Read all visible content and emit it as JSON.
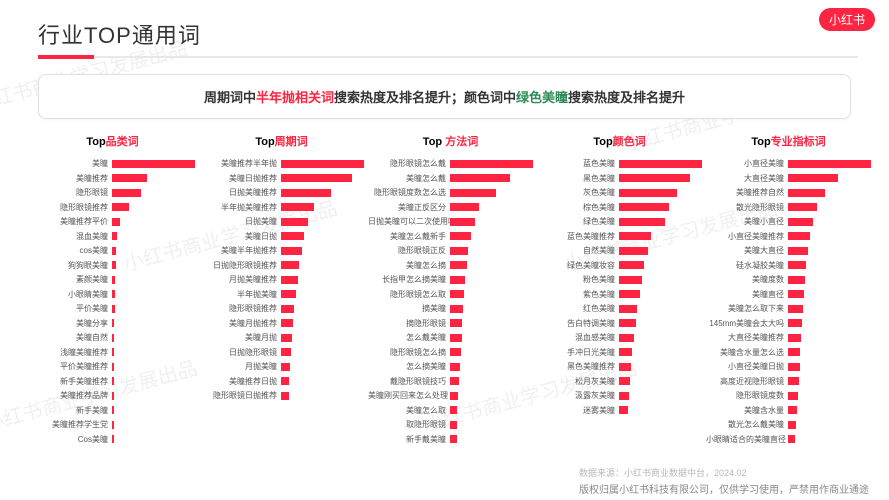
{
  "logo_text": "小红书",
  "page_title": "行业TOP通用词",
  "callout": {
    "p1": "周期词中",
    "hl1": "半年抛相关词",
    "p2": "搜索热度及排名提升；颜色词中",
    "hl2": "绿色美瞳",
    "p3": "搜索热度及排名提升"
  },
  "watermark_text": "小红书商业学习发展出品",
  "charts": [
    {
      "title_prefix": "Top",
      "title_accent": "品类词",
      "max": 100,
      "bars": [
        {
          "label": "美瞳",
          "v": 100
        },
        {
          "label": "美瞳推荐",
          "v": 42
        },
        {
          "label": "隐形眼镜",
          "v": 35
        },
        {
          "label": "隐形眼镜推荐",
          "v": 20
        },
        {
          "label": "美瞳推荐平价",
          "v": 10
        },
        {
          "label": "混血美瞳",
          "v": 6
        },
        {
          "label": "cos美瞳",
          "v": 5
        },
        {
          "label": "狗狗眼美瞳",
          "v": 5
        },
        {
          "label": "素颜美瞳",
          "v": 4
        },
        {
          "label": "小眼睛美瞳",
          "v": 4
        },
        {
          "label": "平价美瞳",
          "v": 4
        },
        {
          "label": "美瞳分享",
          "v": 3
        },
        {
          "label": "美瞳自然",
          "v": 3
        },
        {
          "label": "浅瞳美瞳推荐",
          "v": 3
        },
        {
          "label": "平价美瞳推荐",
          "v": 3
        },
        {
          "label": "新手美瞳推荐",
          "v": 3
        },
        {
          "label": "美瞳推荐品牌",
          "v": 3
        },
        {
          "label": "新手美瞳",
          "v": 3
        },
        {
          "label": "美瞳推荐学生党",
          "v": 2
        },
        {
          "label": "Cos美瞳",
          "v": 2
        }
      ]
    },
    {
      "title_prefix": "Top",
      "title_accent": "周期词",
      "max": 100,
      "bars": [
        {
          "label": "美瞳推荐半年抛",
          "v": 100
        },
        {
          "label": "美瞳日抛推荐",
          "v": 85
        },
        {
          "label": "日抛美瞳推荐",
          "v": 60
        },
        {
          "label": "半年抛美瞳推荐",
          "v": 40
        },
        {
          "label": "日抛美瞳",
          "v": 32
        },
        {
          "label": "美瞳日抛",
          "v": 28
        },
        {
          "label": "美瞳半年抛推荐",
          "v": 25
        },
        {
          "label": "日抛隐形眼镜推荐",
          "v": 22
        },
        {
          "label": "月抛美瞳推荐",
          "v": 20
        },
        {
          "label": "半年抛美瞳",
          "v": 18
        },
        {
          "label": "隐形眼镜推荐",
          "v": 16
        },
        {
          "label": "美瞳月抛推荐",
          "v": 15
        },
        {
          "label": "美瞳月抛",
          "v": 13
        },
        {
          "label": "日抛隐形眼镜",
          "v": 12
        },
        {
          "label": "月抛美瞳",
          "v": 11
        },
        {
          "label": "美瞳推荐日抛",
          "v": 10
        },
        {
          "label": "隐形眼镜日抛推荐",
          "v": 10
        }
      ]
    },
    {
      "title_prefix": "Top ",
      "title_accent": "方法词",
      "max": 100,
      "bars": [
        {
          "label": "隐形眼镜怎么戴",
          "v": 100
        },
        {
          "label": "美瞳怎么戴",
          "v": 72
        },
        {
          "label": "隐形眼镜度数怎么选",
          "v": 55
        },
        {
          "label": "美瞳正反区分",
          "v": 35
        },
        {
          "label": "日抛美瞳可以二次使用吗",
          "v": 30
        },
        {
          "label": "美瞳怎么戴新手",
          "v": 25
        },
        {
          "label": "隐形眼镜正反",
          "v": 22
        },
        {
          "label": "美瞳怎么摘",
          "v": 20
        },
        {
          "label": "长指甲怎么摘美瞳",
          "v": 18
        },
        {
          "label": "隐形眼镜怎么取",
          "v": 17
        },
        {
          "label": "摘美瞳",
          "v": 16
        },
        {
          "label": "摘隐形眼镜",
          "v": 15
        },
        {
          "label": "怎么戴美瞳",
          "v": 14
        },
        {
          "label": "隐形眼镜怎么摘",
          "v": 13
        },
        {
          "label": "怎么摘美瞳",
          "v": 12
        },
        {
          "label": "戴隐形眼镜技巧",
          "v": 11
        },
        {
          "label": "美瞳刚买回来怎么处理",
          "v": 10
        },
        {
          "label": "美瞳怎么取",
          "v": 9
        },
        {
          "label": "取隐形眼镜",
          "v": 8
        },
        {
          "label": "新手戴美瞳",
          "v": 8
        }
      ]
    },
    {
      "title_prefix": "Top",
      "title_accent": "颜色词",
      "max": 100,
      "bars": [
        {
          "label": "蓝色美瞳",
          "v": 100
        },
        {
          "label": "黑色美瞳",
          "v": 85
        },
        {
          "label": "灰色美瞳",
          "v": 70
        },
        {
          "label": "棕色美瞳",
          "v": 60
        },
        {
          "label": "绿色美瞳",
          "v": 55
        },
        {
          "label": "蓝色美瞳推荐",
          "v": 38
        },
        {
          "label": "自然美瞳",
          "v": 35
        },
        {
          "label": "绿色美瞳妆容",
          "v": 30
        },
        {
          "label": "粉色美瞳",
          "v": 28
        },
        {
          "label": "紫色美瞳",
          "v": 25
        },
        {
          "label": "红色美瞳",
          "v": 22
        },
        {
          "label": "告白特调美瞳",
          "v": 20
        },
        {
          "label": "混血感美瞳",
          "v": 18
        },
        {
          "label": "手冲日光美瞳",
          "v": 16
        },
        {
          "label": "黑色美瞳推荐",
          "v": 15
        },
        {
          "label": "松月灰美瞳",
          "v": 13
        },
        {
          "label": "汲露灰美瞳",
          "v": 12
        },
        {
          "label": "迷雾美瞳",
          "v": 11
        }
      ]
    },
    {
      "title_prefix": "Top",
      "title_accent": "专业指标词",
      "max": 100,
      "bars": [
        {
          "label": "小直径美瞳",
          "v": 100
        },
        {
          "label": "大直径美瞳",
          "v": 60
        },
        {
          "label": "美瞳推荐自然",
          "v": 45
        },
        {
          "label": "散光隐形眼镜",
          "v": 35
        },
        {
          "label": "美瞳小直径",
          "v": 30
        },
        {
          "label": "小直径美瞳推荐",
          "v": 27
        },
        {
          "label": "美瞳大直径",
          "v": 24
        },
        {
          "label": "硅水凝胶美瞳",
          "v": 22
        },
        {
          "label": "美瞳度数",
          "v": 20
        },
        {
          "label": "美瞳直径",
          "v": 19
        },
        {
          "label": "美瞳怎么取下来",
          "v": 18
        },
        {
          "label": "145mm美瞳会太大吗",
          "v": 17
        },
        {
          "label": "大直径美瞳推荐",
          "v": 16
        },
        {
          "label": "美瞳含水量怎么选",
          "v": 15
        },
        {
          "label": "小直径美瞳日抛",
          "v": 14
        },
        {
          "label": "高度近视隐形眼镜",
          "v": 13
        },
        {
          "label": "隐形眼镜度数",
          "v": 12
        },
        {
          "label": "美瞳含水量",
          "v": 11
        },
        {
          "label": "散光怎么戴美瞳",
          "v": 10
        },
        {
          "label": "小眼睛适合的美瞳直径",
          "v": 9
        }
      ]
    }
  ],
  "footer": {
    "source": "数据来源：小红书商业数据中台，2024.02",
    "copyright": "版权归属小红书科技有限公司，仅供学习使用，严禁用作商业通途"
  },
  "colors": {
    "brand": "#ff2442",
    "green": "#2e8b57"
  }
}
